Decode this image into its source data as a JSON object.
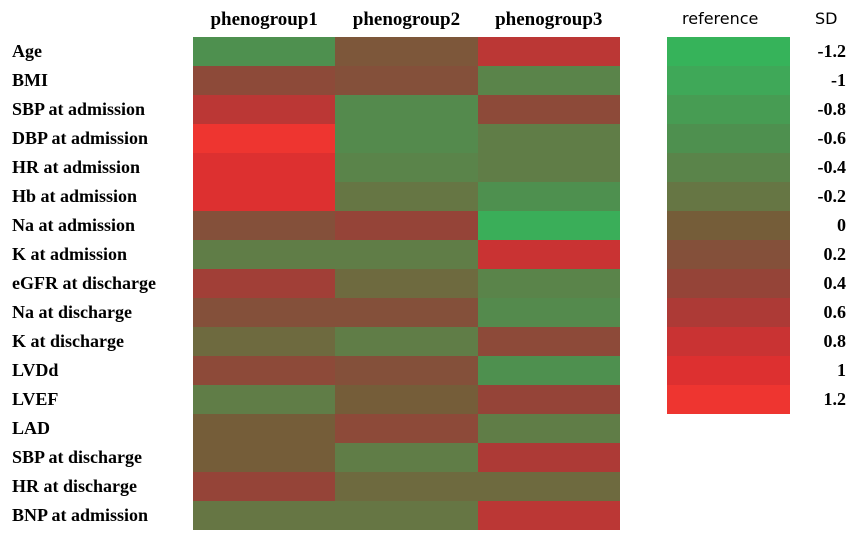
{
  "chart_data": {
    "type": "heatmap",
    "columns": [
      "phenogroup1",
      "phenogroup2",
      "phenogroup3"
    ],
    "rows": [
      "Age",
      "BMI",
      "SBP at admission",
      "DBP at admission",
      "HR at admission",
      "Hb at admission",
      "Na at admission",
      "K at admission",
      "eGFR at discharge",
      "Na at discharge",
      "K at discharge",
      "LVDd",
      "LVEF",
      "LAD",
      "SBP at discharge",
      "HR at discharge",
      "BNP at admission"
    ],
    "values": [
      [
        -0.6,
        0.1,
        0.7
      ],
      [
        0.3,
        0.2,
        -0.4
      ],
      [
        0.7,
        -0.5,
        0.3
      ],
      [
        1.2,
        -0.5,
        -0.3
      ],
      [
        1.0,
        -0.4,
        -0.3
      ],
      [
        1.0,
        -0.2,
        -0.6
      ],
      [
        0.2,
        0.4,
        -1.1
      ],
      [
        -0.3,
        -0.3,
        0.8
      ],
      [
        0.5,
        -0.1,
        -0.4
      ],
      [
        0.2,
        0.2,
        -0.5
      ],
      [
        -0.1,
        -0.3,
        0.3
      ],
      [
        0.3,
        0.2,
        -0.6
      ],
      [
        -0.3,
        0,
        0.4
      ],
      [
        0,
        0.3,
        -0.3
      ],
      [
        0,
        -0.3,
        0.6
      ],
      [
        0.4,
        -0.1,
        -0.1
      ],
      [
        -0.2,
        -0.2,
        0.7
      ]
    ],
    "legend": {
      "title": "reference",
      "unit": "SD",
      "values": [
        -1.2,
        -1,
        -0.8,
        -0.6,
        -0.4,
        -0.2,
        0,
        0.2,
        0.4,
        0.6,
        0.8,
        1,
        1.2
      ],
      "colors": [
        "#36b35a",
        "#3fa858",
        "#479c53",
        "#4e904f",
        "#5a844a",
        "#667644",
        "#755d39",
        "#84503a",
        "#954438",
        "#ad3a36",
        "#c93333",
        "#dd3030",
        "#ee3530"
      ]
    }
  }
}
